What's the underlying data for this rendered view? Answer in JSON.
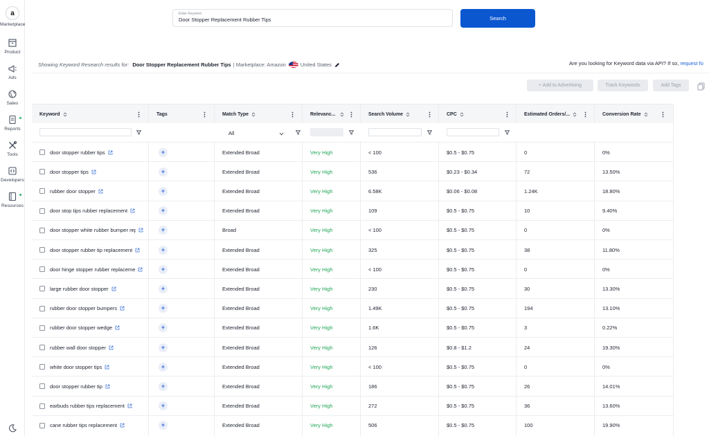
{
  "sidebar": {
    "logo_letter": "a",
    "items": [
      {
        "label": "Marketplace",
        "icon": "amazon-logo-icon"
      },
      {
        "label": "Product",
        "icon": "product-box-icon"
      },
      {
        "label": "Ads",
        "icon": "megaphone-icon"
      },
      {
        "label": "Sales",
        "icon": "globe-sales-icon"
      },
      {
        "label": "Reports",
        "icon": "reports-document-icon"
      },
      {
        "label": "Tools",
        "icon": "tools-icon"
      },
      {
        "label": "Developers",
        "icon": "code-icon"
      },
      {
        "label": "Resources",
        "icon": "resources-book-icon"
      }
    ],
    "bottom_icon": "moon-icon"
  },
  "search": {
    "floating_label": "Enter Keyword",
    "value": "Door Stopper Replacement Rubber Tips",
    "button_label": "Search"
  },
  "info": {
    "showing_label": "Showing Keyword Research results for:",
    "query": "Door Stopper Replacement Rubber Tips",
    "marketplace_text": "| Marketplace: Amazon",
    "country": "United States",
    "api_question": "Are you looking for Keyword data via API? If so,",
    "api_link": "request fo"
  },
  "toolbar": {
    "add_advertising": "+ Add to Advertising",
    "track_keywords": "Track Keywords",
    "add_tags": "Add Tags"
  },
  "columns": {
    "keyword": "Keyword",
    "tags": "Tags",
    "match_type": "Match Type",
    "relevance": "Relevanc...",
    "search_volume": "Search Volume",
    "cpc": "CPC",
    "estimated_orders": "Estimated Orders/...",
    "conversion_rate": "Conversion Rate"
  },
  "filters": {
    "match_type_selected": "All"
  },
  "rows": [
    {
      "keyword": "door stopper rubber tips",
      "match": "Extended Broad",
      "relevance": "Very High",
      "volume": "< 100",
      "cpc": "$0.5 - $0.75",
      "orders": "0",
      "conversion": "0%"
    },
    {
      "keyword": "door stopper tips",
      "match": "Extended Broad",
      "relevance": "Very High",
      "volume": "536",
      "cpc": "$0.23 - $0.34",
      "orders": "72",
      "conversion": "13.50%"
    },
    {
      "keyword": "rubber door stopper",
      "match": "Extended Broad",
      "relevance": "Very High",
      "volume": "6.58K",
      "cpc": "$0.06 - $0.08",
      "orders": "1.24K",
      "conversion": "18.80%"
    },
    {
      "keyword": "door stop tips rubber replacement",
      "match": "Extended Broad",
      "relevance": "Very High",
      "volume": "109",
      "cpc": "$0.5 - $0.75",
      "orders": "10",
      "conversion": "9.40%"
    },
    {
      "keyword": "door stopper white rubber bumper rep",
      "match": "Broad",
      "relevance": "Very High",
      "volume": "< 100",
      "cpc": "$0.5 - $0.75",
      "orders": "0",
      "conversion": "0%"
    },
    {
      "keyword": "door stopper rubber tip replacement",
      "match": "Extended Broad",
      "relevance": "Very High",
      "volume": "325",
      "cpc": "$0.5 - $0.75",
      "orders": "38",
      "conversion": "11.80%"
    },
    {
      "keyword": "door hinge stopper rubber replaceme",
      "match": "Extended Broad",
      "relevance": "Very High",
      "volume": "< 100",
      "cpc": "$0.5 - $0.75",
      "orders": "0",
      "conversion": "0%"
    },
    {
      "keyword": "large rubber door stopper",
      "match": "Extended Broad",
      "relevance": "Very High",
      "volume": "230",
      "cpc": "$0.5 - $0.75",
      "orders": "30",
      "conversion": "13.30%"
    },
    {
      "keyword": "rubber door stopper bumpers",
      "match": "Extended Broad",
      "relevance": "Very High",
      "volume": "1.49K",
      "cpc": "$0.5 - $0.75",
      "orders": "194",
      "conversion": "13.10%"
    },
    {
      "keyword": "rubber door stopper wedge",
      "match": "Extended Broad",
      "relevance": "Very High",
      "volume": "1.6K",
      "cpc": "$0.5 - $0.75",
      "orders": "3",
      "conversion": "0.22%"
    },
    {
      "keyword": "rubber wall door stopper",
      "match": "Extended Broad",
      "relevance": "Very High",
      "volume": "126",
      "cpc": "$0.8 - $1.2",
      "orders": "24",
      "conversion": "19.30%"
    },
    {
      "keyword": "white door stopper tips",
      "match": "Extended Broad",
      "relevance": "Very High",
      "volume": "< 100",
      "cpc": "$0.5 - $0.75",
      "orders": "0",
      "conversion": "0%"
    },
    {
      "keyword": "door stopper rubber tip",
      "match": "Extended Broad",
      "relevance": "Very High",
      "volume": "186",
      "cpc": "$0.5 - $0.75",
      "orders": "26",
      "conversion": "14.01%"
    },
    {
      "keyword": "earbuds rubber tips replacement",
      "match": "Extended Broad",
      "relevance": "Very High",
      "volume": "272",
      "cpc": "$0.5 - $0.75",
      "orders": "36",
      "conversion": "13.60%"
    },
    {
      "keyword": "cane rubber tips replacement",
      "match": "Extended Broad",
      "relevance": "Very High",
      "volume": "506",
      "cpc": "$0.5 - $0.75",
      "orders": "100",
      "conversion": "19.90%"
    }
  ],
  "colors": {
    "accent": "#0b57d0",
    "relevance_green": "#22a658",
    "link": "#1760d6"
  }
}
